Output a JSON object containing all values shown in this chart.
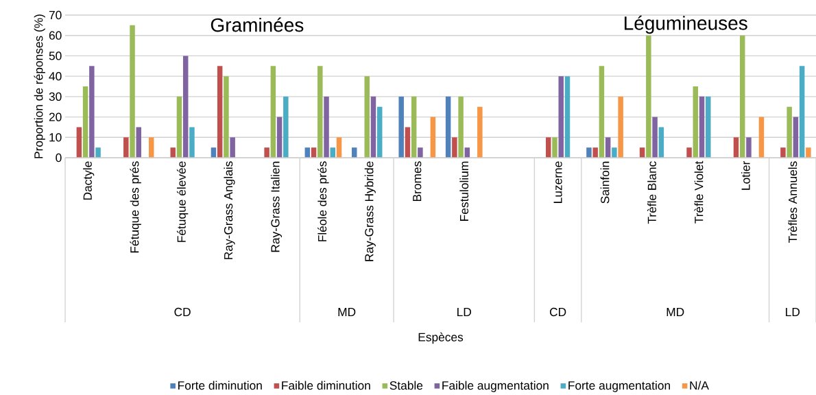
{
  "chart_data": {
    "type": "bar",
    "ylabel": "Proportion de réponses (%)",
    "categories": [
      "Dactyle",
      "Fétuque des prés",
      "Fétuque élevée",
      "Ray-Grass Anglais",
      "Ray-Grass Italien",
      "Fléole des prés",
      "Ray-Grass Hybride",
      "Bromes",
      "Festulolium",
      null,
      "Luzerne",
      "Sainfoin",
      "Trèfle Blanc",
      "Trèfle Violet",
      "Lotier",
      "Trèfles Annuels"
    ],
    "series": [
      {
        "name": "Forte diminution",
        "color": "#4f81bd",
        "values": [
          null,
          null,
          null,
          5,
          null,
          5,
          5,
          30,
          30,
          null,
          null,
          5,
          null,
          null,
          null,
          null
        ]
      },
      {
        "name": "Faible diminution",
        "color": "#c0504d",
        "values": [
          15,
          10,
          5,
          45,
          5,
          5,
          null,
          15,
          10,
          null,
          10,
          5,
          5,
          5,
          10,
          5
        ]
      },
      {
        "name": "Stable",
        "color": "#9bbb59",
        "values": [
          35,
          65,
          30,
          40,
          45,
          45,
          40,
          30,
          30,
          null,
          10,
          45,
          60,
          35,
          60,
          25
        ]
      },
      {
        "name": "Faible augmentation",
        "color": "#8064a2",
        "values": [
          45,
          15,
          50,
          10,
          20,
          30,
          30,
          5,
          5,
          null,
          40,
          10,
          20,
          30,
          10,
          20
        ]
      },
      {
        "name": "Forte augmentation",
        "color": "#4bacc6",
        "values": [
          5,
          null,
          15,
          null,
          30,
          5,
          25,
          null,
          null,
          null,
          40,
          5,
          15,
          30,
          null,
          45
        ]
      },
      {
        "name": "N/A",
        "color": "#f79646",
        "values": [
          null,
          10,
          null,
          null,
          null,
          10,
          null,
          20,
          25,
          null,
          null,
          30,
          null,
          null,
          20,
          5
        ]
      }
    ],
    "ylim": [
      0,
      70
    ],
    "yticks": [
      0,
      10,
      20,
      30,
      40,
      50,
      60,
      70
    ],
    "grid": "y",
    "legend": "bottom",
    "annotations": [
      "Graminées",
      "Légumineuses",
      "CD",
      "MD",
      "LD",
      "CD",
      "MD",
      "LD",
      "Espèces"
    ]
  }
}
